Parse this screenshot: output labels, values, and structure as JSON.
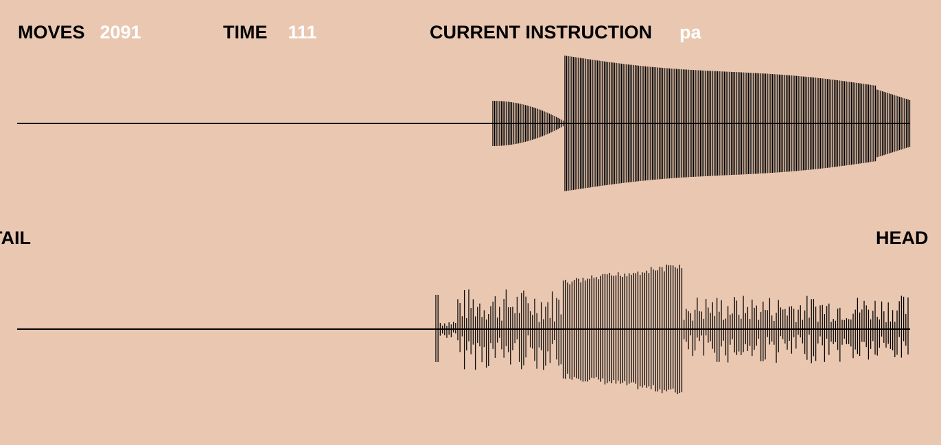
{
  "hud": {
    "moves_label": "MOVES",
    "moves_value": "2091",
    "time_label": "TIME",
    "time_value": "111",
    "instruction_label": "CURRENT INSTRUCTION",
    "instruction_value": "pa"
  },
  "labels": {
    "tail": "TAIL",
    "head": "HEAD"
  },
  "colors": {
    "background": "#E9C7B1",
    "label": "#000000",
    "value": "#FFFFFF",
    "trace": "#000000"
  }
}
